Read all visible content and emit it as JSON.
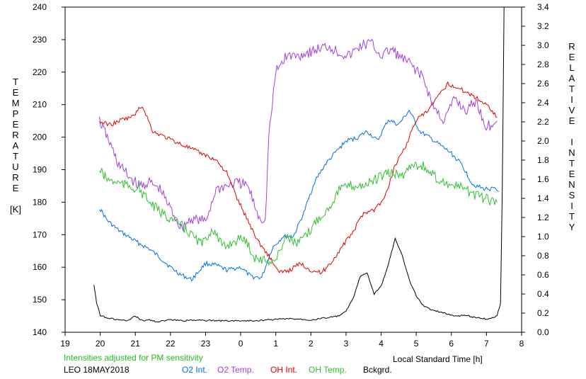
{
  "chart_data": {
    "type": "line",
    "station_label": "LEO 18MAY2018",
    "note": "Intensities adjusted for PM sensitivity",
    "xlabel": "Local Standard Time [h]",
    "ylabel_left_letters": [
      "T",
      "E",
      "M",
      "P",
      "E",
      "R",
      "A",
      "T",
      "U",
      "R",
      "E",
      "",
      "[K]"
    ],
    "ylabel_right_letters": [
      "R",
      "E",
      "L",
      "A",
      "T",
      "I",
      "V",
      "E",
      "",
      "I",
      "N",
      "T",
      "E",
      "N",
      "S",
      "I",
      "T",
      "Y"
    ],
    "x_ticks": [
      "19",
      "20",
      "21",
      "22",
      "23",
      "0",
      "1",
      "2",
      "3",
      "4",
      "5",
      "6",
      "7",
      "8"
    ],
    "y_left_ticks": [
      "140",
      "150",
      "160",
      "170",
      "180",
      "190",
      "200",
      "210",
      "220",
      "230",
      "240"
    ],
    "y_right_ticks": [
      "0.0",
      "0.2",
      "0.4",
      "0.6",
      "0.8",
      "1.0",
      "1.2",
      "1.4",
      "1.6",
      "1.8",
      "2.0",
      "2.2",
      "2.4",
      "2.6",
      "2.8",
      "3.0",
      "3.2",
      "3.4"
    ],
    "xlim": [
      19,
      32
    ],
    "ylim_left": [
      140,
      240
    ],
    "ylim_right": [
      0,
      3.4
    ],
    "series": [
      {
        "name": "O2 Int.",
        "axis": "right",
        "color": "#0070e0",
        "x": [
          19.98,
          20.2,
          20.5,
          20.8,
          21.1,
          21.4,
          21.7,
          22.0,
          22.3,
          22.6,
          23.0,
          23.3,
          23.6,
          24.0,
          24.3,
          24.6,
          24.9,
          25.2,
          25.5,
          25.8,
          26.1,
          26.4,
          26.7,
          27.0,
          27.3,
          27.6,
          27.9,
          28.2,
          28.5,
          28.8,
          29.1,
          29.4,
          29.7,
          30.0,
          30.3,
          30.6,
          30.9,
          31.2,
          31.35
        ],
        "y": [
          1.3,
          1.17,
          1.07,
          1.0,
          0.93,
          0.87,
          0.78,
          0.68,
          0.6,
          0.55,
          0.72,
          0.7,
          0.65,
          0.68,
          0.58,
          0.57,
          0.88,
          1.0,
          1.0,
          1.25,
          1.57,
          1.75,
          1.88,
          2.0,
          2.03,
          2.1,
          2.0,
          2.22,
          2.17,
          2.32,
          2.1,
          2.03,
          1.95,
          1.87,
          1.75,
          1.55,
          1.5,
          1.5,
          1.47
        ]
      },
      {
        "name": "O2 Temp.",
        "axis": "left",
        "color": "#a040e0",
        "x": [
          19.98,
          20.2,
          20.5,
          20.8,
          21.1,
          21.4,
          21.7,
          22.0,
          22.3,
          22.6,
          23.0,
          23.3,
          23.6,
          23.9,
          24.2,
          24.5,
          24.7,
          24.8,
          25.0,
          25.3,
          25.6,
          25.9,
          26.2,
          26.5,
          26.8,
          27.1,
          27.4,
          27.7,
          28.0,
          28.3,
          28.6,
          28.9,
          29.2,
          29.5,
          29.8,
          30.1,
          30.4,
          30.7,
          31.0,
          31.3
        ],
        "y": [
          205,
          200,
          192,
          188,
          185,
          186,
          184,
          178,
          172,
          175,
          174,
          184,
          185,
          186,
          185,
          176,
          174,
          200,
          220,
          225,
          225,
          226,
          227,
          228,
          226,
          225,
          228,
          229,
          225,
          227,
          224,
          222,
          218,
          209,
          205,
          212,
          208,
          211,
          203,
          205
        ]
      },
      {
        "name": "OH Int.",
        "axis": "right",
        "color": "#e00000",
        "x": [
          19.98,
          20.3,
          20.6,
          20.9,
          21.2,
          21.5,
          21.8,
          22.1,
          22.4,
          22.7,
          23.0,
          23.3,
          23.6,
          23.9,
          24.2,
          24.5,
          24.8,
          25.1,
          25.4,
          25.7,
          26.0,
          26.3,
          26.6,
          26.9,
          27.2,
          27.5,
          27.8,
          28.1,
          28.4,
          28.7,
          29.0,
          29.3,
          29.6,
          29.9,
          30.2,
          30.5,
          30.8,
          31.1,
          31.3
        ],
        "y": [
          2.2,
          2.17,
          2.22,
          2.25,
          2.37,
          2.1,
          2.05,
          2.0,
          1.95,
          1.9,
          1.85,
          1.8,
          1.67,
          1.4,
          1.17,
          0.95,
          0.8,
          0.62,
          0.65,
          0.72,
          0.65,
          0.62,
          0.74,
          0.9,
          1.05,
          1.25,
          1.28,
          1.4,
          1.75,
          1.95,
          2.22,
          2.3,
          2.45,
          2.6,
          2.55,
          2.5,
          2.43,
          2.35,
          2.25
        ]
      },
      {
        "name": "OH Temp.",
        "axis": "left",
        "color": "#30c030",
        "x": [
          19.98,
          20.2,
          20.5,
          20.8,
          21.1,
          21.4,
          21.7,
          22.0,
          22.3,
          22.6,
          22.9,
          23.2,
          23.5,
          23.8,
          24.1,
          24.4,
          24.7,
          25.0,
          25.3,
          25.6,
          25.9,
          26.2,
          26.5,
          26.8,
          27.1,
          27.4,
          27.7,
          28.0,
          28.3,
          28.6,
          28.9,
          29.2,
          29.5,
          29.8,
          30.1,
          30.4,
          30.7,
          31.0,
          31.3
        ],
        "y": [
          190,
          187,
          186,
          185,
          184,
          180,
          177,
          175,
          173,
          170,
          167,
          172,
          166,
          168,
          169,
          163,
          162,
          162,
          170,
          167,
          170,
          175,
          178,
          184,
          185,
          185,
          186,
          188,
          189,
          188,
          192,
          191,
          188,
          186,
          185,
          184,
          182,
          181,
          180
        ]
      },
      {
        "name": "Bckgrd.",
        "axis": "right",
        "color": "#000000",
        "x": [
          19.82,
          19.9,
          20.0,
          20.2,
          20.5,
          20.8,
          21.0,
          21.2,
          21.4,
          21.6,
          22.0,
          22.4,
          22.8,
          23.2,
          23.6,
          24.0,
          24.4,
          24.8,
          25.2,
          25.6,
          26.0,
          26.4,
          26.8,
          27.0,
          27.2,
          27.4,
          27.6,
          27.8,
          28.0,
          28.2,
          28.4,
          28.6,
          28.8,
          29.0,
          29.2,
          29.4,
          29.6,
          29.8,
          30.0,
          30.2,
          30.4,
          30.6,
          30.8,
          31.0,
          31.2,
          31.3,
          31.4,
          31.45,
          31.5
        ],
        "y": [
          0.5,
          0.3,
          0.18,
          0.15,
          0.13,
          0.12,
          0.17,
          0.12,
          0.13,
          0.11,
          0.13,
          0.12,
          0.13,
          0.12,
          0.12,
          0.12,
          0.12,
          0.13,
          0.14,
          0.14,
          0.13,
          0.15,
          0.17,
          0.22,
          0.35,
          0.58,
          0.62,
          0.4,
          0.48,
          0.7,
          0.98,
          0.8,
          0.55,
          0.38,
          0.28,
          0.24,
          0.22,
          0.2,
          0.18,
          0.17,
          0.18,
          0.16,
          0.15,
          0.14,
          0.15,
          0.18,
          0.3,
          1.5,
          3.4
        ]
      }
    ]
  }
}
